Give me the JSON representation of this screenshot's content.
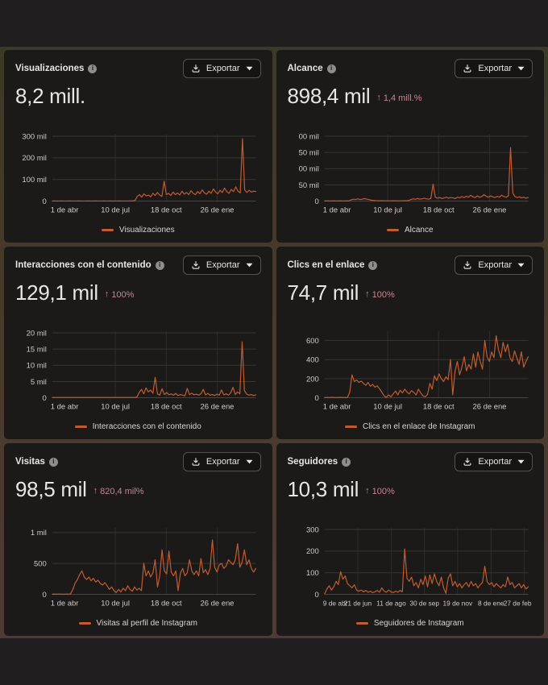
{
  "colors": {
    "line": "#c15c31",
    "trend_text": "#c78591",
    "panel_bg": "#1b1a19",
    "page_bar_bg": "#1f1d1d",
    "gap_gradient_top": "#3b3927",
    "gap_gradient_bottom": "#4e3b37",
    "grid_line": "#37352f",
    "zero_line": "#4d4b49",
    "tick_text": "#cfccc9"
  },
  "export": {
    "label": "Exportar"
  },
  "icons": {
    "info": "i",
    "trend_up": "↑",
    "download": "download-icon",
    "chevron": "chevron-down-icon"
  },
  "panels": [
    {
      "title": "Visualizaciones",
      "value": "8,2 mill.",
      "trend": null,
      "legend": "Visualizaciones",
      "chart": 0
    },
    {
      "title": "Alcance",
      "value": "898,4 mil",
      "trend": "1,4 mill.%",
      "legend": "Alcance",
      "chart": 1
    },
    {
      "title": "Interacciones con el contenido",
      "value": "129,1 mil",
      "trend": "100%",
      "legend": "Interacciones con el contenido",
      "chart": 2
    },
    {
      "title": "Clics en el enlace",
      "value": "74,7 mil",
      "trend": "100%",
      "legend": "Clics en el enlace de Instagram",
      "chart": 3
    },
    {
      "title": "Visitas",
      "value": "98,5 mil",
      "trend": "820,4 mil%",
      "legend": "Visitas al perfil de Instagram",
      "chart": 4
    },
    {
      "title": "Seguidores",
      "value": "10,3 mil",
      "trend": "100%",
      "legend": "Seguidores de Instagram",
      "chart": 5
    }
  ],
  "chart_data": [
    {
      "type": "line",
      "title": "Visualizaciones",
      "unit": "mil (thousands)",
      "ylim": [
        0,
        300
      ],
      "grid": true,
      "legend_position": "bottom",
      "yticks": [
        {
          "v": 300,
          "label": "300 mil"
        },
        {
          "v": 200,
          "label": "200 mil"
        },
        {
          "v": 100,
          "label": "100 mil"
        },
        {
          "v": 0,
          "label": "0"
        }
      ],
      "xticks": [
        {
          "pos": 0.01,
          "label": "1 de abr"
        },
        {
          "pos": 0.31,
          "label": "10 de jul"
        },
        {
          "pos": 0.56,
          "label": "18 de oct"
        },
        {
          "pos": 0.81,
          "label": "26 de ene"
        }
      ],
      "line_color": "#c15c31",
      "series": [
        {
          "name": "Visualizaciones",
          "values": [
            0.5,
            0.6,
            0.5,
            0.4,
            0.6,
            0.5,
            0.5,
            0.4,
            0.6,
            0.5,
            0.4,
            0.5,
            0.6,
            0.5,
            0.4,
            0.5,
            0.6,
            0.4,
            0.5,
            0.6,
            0.5,
            0.4,
            0.5,
            0.6,
            0.5,
            0.4,
            0.6,
            0.5,
            0.4,
            0.5,
            0.6,
            0.5,
            0.4,
            0.5,
            0.5,
            0.6,
            1,
            3,
            22,
            30,
            18,
            34,
            24,
            28,
            20,
            36,
            26,
            40,
            28,
            22,
            92,
            30,
            36,
            26,
            42,
            30,
            38,
            28,
            46,
            32,
            40,
            30,
            48,
            36,
            30,
            44,
            34,
            52,
            38,
            32,
            46,
            36,
            56,
            42,
            34,
            50,
            40,
            60,
            44,
            36,
            54,
            44,
            66,
            46,
            38,
            288,
            52,
            40,
            50,
            42,
            46,
            44
          ]
        }
      ]
    },
    {
      "type": "line",
      "title": "Alcance",
      "unit": "mil (thousands)",
      "ylim": [
        0,
        200
      ],
      "grid": true,
      "legend_position": "bottom",
      "yticks": [
        {
          "v": 200,
          "label": "00 mil"
        },
        {
          "v": 150,
          "label": "50 mil"
        },
        {
          "v": 100,
          "label": "00 mil"
        },
        {
          "v": 50,
          "label": "50 mil"
        },
        {
          "v": 0,
          "label": "0"
        }
      ],
      "xticks": [
        {
          "pos": 0.01,
          "label": "1 de abr"
        },
        {
          "pos": 0.31,
          "label": "10 de jul"
        },
        {
          "pos": 0.56,
          "label": "18 de oct"
        },
        {
          "pos": 0.81,
          "label": "26 de ene"
        }
      ],
      "line_color": "#c15c31",
      "series": [
        {
          "name": "Alcance",
          "values": [
            0.5,
            0.7,
            0.6,
            0.5,
            0.8,
            0.6,
            0.5,
            0.7,
            0.6,
            0.5,
            0.7,
            0.6,
            4,
            6,
            5,
            7,
            5,
            6,
            8,
            6,
            5,
            3,
            2,
            1.5,
            1.2,
            1,
            1.2,
            1,
            0.9,
            1.1,
            0.9,
            1.2,
            1,
            0.8,
            1.1,
            0.9,
            1.2,
            1,
            2,
            5,
            7,
            6,
            8,
            6,
            7,
            9,
            7,
            6,
            8,
            52,
            12,
            9,
            11,
            8,
            10,
            12,
            9,
            11,
            10,
            8,
            12,
            10,
            14,
            11,
            15,
            12,
            18,
            13,
            11,
            16,
            12,
            14,
            20,
            15,
            12,
            16,
            13,
            11,
            15,
            12,
            18,
            14,
            12,
            16,
            165,
            25,
            14,
            11,
            13,
            10,
            12,
            9,
            11
          ]
        }
      ]
    },
    {
      "type": "line",
      "title": "Interacciones con el contenido",
      "unit": "mil (thousands)",
      "ylim": [
        0,
        20
      ],
      "grid": true,
      "legend_position": "bottom",
      "yticks": [
        {
          "v": 20,
          "label": "20 mil"
        },
        {
          "v": 15,
          "label": "15 mil"
        },
        {
          "v": 10,
          "label": "10 mil"
        },
        {
          "v": 5,
          "label": "5 mil"
        },
        {
          "v": 0,
          "label": "0"
        }
      ],
      "xticks": [
        {
          "pos": 0.01,
          "label": "1 de abr"
        },
        {
          "pos": 0.31,
          "label": "10 de jul"
        },
        {
          "pos": 0.56,
          "label": "18 de oct"
        },
        {
          "pos": 0.81,
          "label": "26 de ene"
        }
      ],
      "line_color": "#c15c31",
      "series": [
        {
          "name": "Interacciones con el contenido",
          "values": [
            0.1,
            0.1,
            0.1,
            0.1,
            0.1,
            0.1,
            0.1,
            0.1,
            0.1,
            0.1,
            0.1,
            0.1,
            0.1,
            0.1,
            0.1,
            0.1,
            0.1,
            0.1,
            0.1,
            0.1,
            0.1,
            0.1,
            0.1,
            0.1,
            0.1,
            0.1,
            0.1,
            0.1,
            0.1,
            0.1,
            0.1,
            0.1,
            0.1,
            0.1,
            0.1,
            0.1,
            0.1,
            0.2,
            1.6,
            2.6,
            1.2,
            3,
            1.8,
            2.4,
            1.4,
            6.3,
            1.2,
            0.8,
            2.8,
            1,
            1.6,
            0.9,
            1.2,
            0.8,
            1.3,
            0.7,
            1,
            0.8,
            0.6,
            2.9,
            1,
            1.4,
            0.9,
            1.1,
            0.8,
            1.2,
            2.6,
            0.9,
            1.3,
            0.8,
            1,
            0.7,
            1.1,
            0.8,
            2.4,
            0.9,
            1.2,
            0.8,
            1.5,
            3.2,
            1,
            1.8,
            1.2,
            17.2,
            2.2,
            1.1,
            0.8,
            1,
            0.7,
            0.9
          ]
        }
      ]
    },
    {
      "type": "line",
      "title": "Clics en el enlace",
      "unit": "count",
      "ylim": [
        0,
        680
      ],
      "grid": true,
      "legend_position": "bottom",
      "yticks": [
        {
          "v": 600,
          "label": "600"
        },
        {
          "v": 400,
          "label": "400"
        },
        {
          "v": 200,
          "label": "200"
        },
        {
          "v": 0,
          "label": "0"
        }
      ],
      "xticks": [
        {
          "pos": 0.01,
          "label": "1 de abr"
        },
        {
          "pos": 0.31,
          "label": "10 de jul"
        },
        {
          "pos": 0.56,
          "label": "18 de oct"
        },
        {
          "pos": 0.81,
          "label": "26 de ene"
        }
      ],
      "line_color": "#c15c31",
      "series": [
        {
          "name": "Clics en el enlace de Instagram",
          "values": [
            2,
            3,
            2,
            4,
            3,
            2,
            3,
            4,
            2,
            3,
            2,
            60,
            240,
            170,
            185,
            160,
            175,
            150,
            130,
            160,
            120,
            140,
            110,
            125,
            95,
            60,
            20,
            5,
            30,
            10,
            40,
            70,
            30,
            80,
            50,
            90,
            60,
            40,
            75,
            55,
            30,
            90,
            50,
            20,
            10,
            35,
            150,
            90,
            230,
            180,
            250,
            200,
            170,
            220,
            190,
            400,
            30,
            280,
            380,
            240,
            320,
            430,
            280,
            350,
            300,
            460,
            320,
            480,
            380,
            300,
            600,
            430,
            380,
            480,
            420,
            650,
            500,
            420,
            580,
            480,
            560,
            420,
            380,
            490,
            420,
            350,
            480,
            320,
            380,
            430
          ]
        }
      ]
    },
    {
      "type": "line",
      "title": "Visitas",
      "unit": "count",
      "ylim": [
        0,
        1050
      ],
      "grid": true,
      "legend_position": "bottom",
      "yticks": [
        {
          "v": 1000,
          "label": "1 mil"
        },
        {
          "v": 500,
          "label": "500"
        },
        {
          "v": 0,
          "label": "0"
        }
      ],
      "xticks": [
        {
          "pos": 0.01,
          "label": "1 de abr"
        },
        {
          "pos": 0.31,
          "label": "10 de jul"
        },
        {
          "pos": 0.56,
          "label": "18 de oct"
        },
        {
          "pos": 0.81,
          "label": "26 de ene"
        }
      ],
      "line_color": "#c15c31",
      "series": [
        {
          "name": "Visitas al perfil de Instagram",
          "values": [
            3,
            4,
            3,
            5,
            4,
            3,
            4,
            5,
            4,
            80,
            180,
            240,
            320,
            380,
            280,
            240,
            280,
            220,
            260,
            200,
            230,
            180,
            150,
            190,
            140,
            80,
            120,
            60,
            30,
            80,
            40,
            100,
            60,
            140,
            80,
            50,
            120,
            70,
            100,
            60,
            500,
            300,
            380,
            280,
            350,
            560,
            120,
            300,
            720,
            380,
            330,
            700,
            360,
            300,
            380,
            60,
            340,
            420,
            300,
            350,
            560,
            380,
            320,
            380,
            300,
            580,
            350,
            400,
            320,
            420,
            880,
            440,
            360,
            480,
            500,
            420,
            460,
            560,
            520,
            480,
            560,
            820,
            440,
            520,
            720,
            480,
            560,
            420,
            360,
            420
          ]
        }
      ]
    },
    {
      "type": "line",
      "title": "Seguidores",
      "unit": "count",
      "ylim": [
        0,
        300
      ],
      "grid": true,
      "legend_position": "bottom",
      "yticks": [
        {
          "v": 300,
          "label": "300"
        },
        {
          "v": 200,
          "label": "200"
        },
        {
          "v": 100,
          "label": "100"
        },
        {
          "v": 0,
          "label": "0"
        }
      ],
      "xticks": [
        {
          "pos": 0.0,
          "label": "9 de abr"
        },
        {
          "pos": 0.163,
          "label": "21 de jun"
        },
        {
          "pos": 0.327,
          "label": "11 de ago"
        },
        {
          "pos": 0.49,
          "label": "30 de sep"
        },
        {
          "pos": 0.653,
          "label": "19 de nov"
        },
        {
          "pos": 0.817,
          "label": "8 de ene"
        },
        {
          "pos": 0.98,
          "label": "27 de feb"
        }
      ],
      "line_color": "#c15c31",
      "series": [
        {
          "name": "Seguidores de Instagram",
          "values": [
            2,
            25,
            40,
            20,
            35,
            60,
            45,
            105,
            70,
            85,
            50,
            40,
            30,
            45,
            20,
            15,
            20,
            12,
            18,
            10,
            15,
            8,
            12,
            18,
            10,
            30,
            15,
            10,
            20,
            12,
            8,
            15,
            10,
            18,
            12,
            210,
            75,
            60,
            80,
            40,
            55,
            30,
            70,
            45,
            85,
            35,
            90,
            50,
            95,
            60,
            40,
            80,
            30,
            5,
            75,
            95,
            40,
            60,
            35,
            50,
            30,
            45,
            55,
            35,
            60,
            40,
            50,
            30,
            45,
            55,
            130,
            60,
            45,
            55,
            35,
            50,
            40,
            30,
            45,
            35,
            80,
            45,
            55,
            30,
            40,
            50,
            30,
            45,
            25,
            35
          ]
        }
      ]
    }
  ]
}
